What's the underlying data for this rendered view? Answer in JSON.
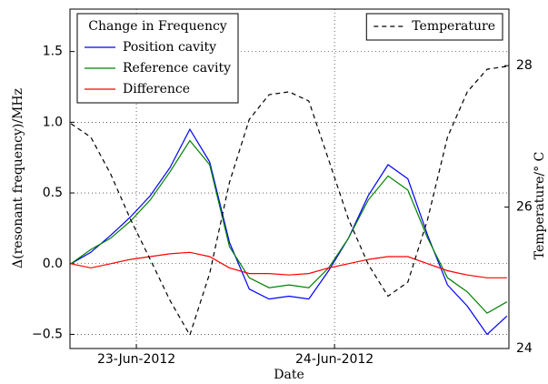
{
  "chart_data": {
    "type": "line",
    "x_label": "Date",
    "y_label": "Δ(resonant frequency)/MHz",
    "y2_label": "Temperature/° C",
    "x": [
      -0.33,
      -0.23,
      -0.13,
      -0.03,
      0.07,
      0.17,
      0.27,
      0.37,
      0.47,
      0.57,
      0.67,
      0.77,
      0.87,
      0.97,
      1.07,
      1.17,
      1.27,
      1.37,
      1.47,
      1.57,
      1.67,
      1.77,
      1.87
    ],
    "xlim": [
      -0.335,
      1.88
    ],
    "xticks": [
      {
        "value": 0,
        "label": "23-Jun-2012"
      },
      {
        "value": 1,
        "label": "24-Jun-2012"
      }
    ],
    "ylim": [
      -0.6,
      1.8
    ],
    "yticks": [
      {
        "value": -0.5,
        "label": "−0.5"
      },
      {
        "value": 0,
        "label": "0.0"
      },
      0.5,
      {
        "value": 1,
        "label": "1.0"
      },
      1.5
    ],
    "y2lim": [
      24,
      28.8
    ],
    "y2ticks": [
      24,
      26,
      28
    ],
    "grid": true,
    "legend_title": "Change in Frequency",
    "legend_loc": "upper left",
    "legend2_loc": "upper right",
    "series": [
      {
        "name": "Position cavity",
        "color": "#0000ff",
        "linestyle": "solid",
        "values": [
          0.0,
          0.08,
          0.2,
          0.33,
          0.48,
          0.68,
          0.95,
          0.72,
          0.15,
          -0.18,
          -0.25,
          -0.23,
          -0.25,
          -0.05,
          0.18,
          0.48,
          0.7,
          0.6,
          0.2,
          -0.15,
          -0.3,
          -0.5,
          -0.37
        ]
      },
      {
        "name": "Reference cavity",
        "color": "#008000",
        "linestyle": "solid",
        "values": [
          0.0,
          0.1,
          0.18,
          0.3,
          0.45,
          0.65,
          0.87,
          0.7,
          0.12,
          -0.1,
          -0.17,
          -0.15,
          -0.17,
          -0.03,
          0.18,
          0.45,
          0.62,
          0.52,
          0.18,
          -0.1,
          -0.2,
          -0.35,
          -0.27
        ]
      },
      {
        "name": "Difference",
        "color": "#ff0000",
        "linestyle": "solid",
        "values": [
          0.0,
          -0.03,
          0.0,
          0.03,
          0.05,
          0.07,
          0.08,
          0.05,
          -0.03,
          -0.07,
          -0.07,
          -0.08,
          -0.07,
          -0.03,
          0.0,
          0.03,
          0.05,
          0.05,
          0.0,
          -0.05,
          -0.08,
          -0.1,
          -0.1
        ]
      },
      {
        "name": "Temperature",
        "color": "#000000",
        "linestyle": "dashed",
        "axis": "y2",
        "values": [
          27.18,
          26.99,
          26.47,
          25.83,
          25.26,
          24.68,
          24.19,
          25.06,
          26.35,
          27.24,
          27.59,
          27.63,
          27.5,
          26.67,
          25.83,
          25.19,
          24.74,
          24.94,
          25.83,
          26.99,
          27.63,
          27.95,
          27.99
        ]
      }
    ]
  }
}
